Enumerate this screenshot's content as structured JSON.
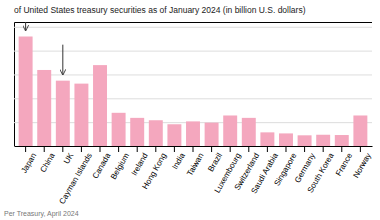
{
  "chart_data": {
    "type": "bar",
    "title": "of United States treasury securities as of January 2024 (in billion U.S. dollars)",
    "categories": [
      "Japan",
      "China",
      "UK",
      "Cayman Islands",
      "Canada",
      "Belgium",
      "Ireland",
      "Hong Kong",
      "India",
      "Taiwan",
      "Brazil",
      "Luxembourg",
      "Switzerland",
      "Saudi Arabia",
      "Singapore",
      "Germany",
      "South Korea",
      "France",
      "Norway"
    ],
    "values": [
      1148,
      797,
      685,
      654,
      848,
      348,
      295,
      270,
      228,
      258,
      245,
      320,
      295,
      143,
      132,
      112,
      118,
      115,
      320
    ],
    "color": "#f4a7be",
    "ylim": [
      0,
      1300
    ],
    "yticks": [
      0,
      250,
      500,
      750,
      1000,
      1250
    ],
    "grid": true,
    "tick_labels": "x",
    "annotations": [
      "Per Treasury, April 2024"
    ],
    "arrows": [
      "Japan",
      "UK"
    ]
  }
}
